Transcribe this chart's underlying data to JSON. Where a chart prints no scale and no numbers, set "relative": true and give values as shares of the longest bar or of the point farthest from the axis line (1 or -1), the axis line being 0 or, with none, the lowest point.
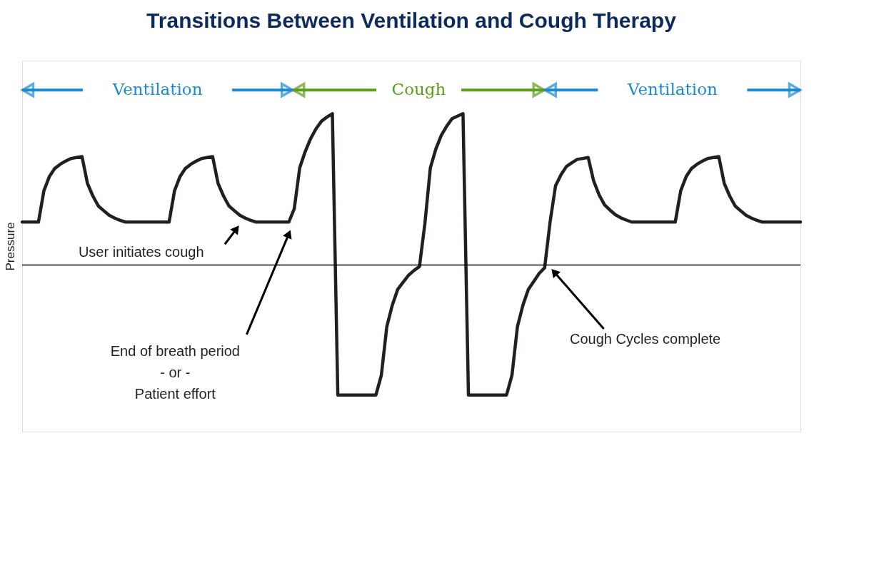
{
  "chart_data": {
    "type": "line",
    "title": "Transitions Between Ventilation and Cough Therapy",
    "ylabel": "Pressure",
    "relative": true,
    "tick_labels": false,
    "grid": false,
    "marker": "none",
    "line_style": "solid",
    "categories": [
      null,
      null,
      null,
      null,
      null,
      null,
      null,
      null,
      null,
      null,
      null,
      null,
      null,
      null,
      null,
      null,
      null,
      null,
      null,
      null,
      null,
      null,
      null,
      null,
      null,
      null,
      null,
      null,
      null,
      null,
      null,
      null,
      null,
      null,
      null,
      null,
      null,
      null,
      null,
      null,
      null,
      null,
      null,
      null,
      null,
      null,
      null,
      null,
      null,
      null,
      null,
      null,
      null,
      null,
      null,
      null,
      null,
      null,
      null,
      null,
      null,
      null,
      null,
      null,
      null,
      null,
      null,
      null,
      null,
      null,
      null,
      null,
      null,
      null,
      null,
      null,
      null,
      null,
      null,
      null,
      null,
      null,
      null,
      null,
      null,
      null,
      null,
      null,
      null,
      null,
      null,
      null,
      null,
      null,
      null,
      null,
      null,
      null,
      null,
      null,
      null,
      null,
      null,
      null,
      null,
      null,
      null,
      null,
      null,
      null,
      null,
      null,
      null,
      null,
      null,
      null,
      null,
      null,
      null,
      null,
      null,
      null,
      null,
      null,
      null,
      null,
      null,
      null,
      null,
      null,
      null,
      null,
      null,
      null,
      null,
      null,
      null,
      null,
      null,
      null,
      null,
      null,
      null,
      null
    ],
    "series": [
      {
        "color": "#231f20",
        "values": [
          0.284,
          0.284,
          0.284,
          0.284,
          0.491,
          0.584,
          0.638,
          0.666,
          0.687,
          0.704,
          0.71,
          0.716,
          0.539,
          0.456,
          0.39,
          0.359,
          0.329,
          0.31,
          0.295,
          0.284,
          0.284,
          0.284,
          0.284,
          0.284,
          0.284,
          0.284,
          0.284,
          0.284,
          0.491,
          0.584,
          0.638,
          0.666,
          0.687,
          0.704,
          0.71,
          0.716,
          0.539,
          0.456,
          0.39,
          0.359,
          0.329,
          0.31,
          0.295,
          0.284,
          0.284,
          0.284,
          0.284,
          0.284,
          0.284,
          0.284,
          0.372,
          0.642,
          0.749,
          0.835,
          0.9,
          0.95,
          0.977,
          1,
          -0.858,
          -0.858,
          -0.858,
          -0.858,
          -0.858,
          -0.858,
          -0.858,
          -0.858,
          -0.727,
          -0.407,
          -0.266,
          -0.161,
          -0.114,
          -0.067,
          -0.036,
          -0.01,
          0.275,
          0.642,
          0.765,
          0.856,
          0.917,
          0.967,
          0.984,
          1,
          -0.858,
          -0.858,
          -0.858,
          -0.858,
          -0.858,
          -0.858,
          -0.858,
          -0.858,
          -0.727,
          -0.407,
          -0.266,
          -0.161,
          -0.108,
          -0.055,
          -0.018,
          0.284,
          0.523,
          0.596,
          0.651,
          0.676,
          0.698,
          0.704,
          0.71,
          0.556,
          0.464,
          0.398,
          0.363,
          0.332,
          0.312,
          0.297,
          0.284,
          0.284,
          0.284,
          0.284,
          0.284,
          0.284,
          0.284,
          0.284,
          0.284,
          0.491,
          0.584,
          0.638,
          0.666,
          0.687,
          0.704,
          0.71,
          0.716,
          0.539,
          0.456,
          0.39,
          0.359,
          0.329,
          0.31,
          0.295,
          0.284,
          0.284,
          0.284,
          0.284,
          0.284,
          0.284,
          0.284,
          0.284
        ]
      }
    ],
    "annotations": [
      "Ventilation",
      "Cough",
      "Ventilation",
      "User initiates cough",
      "End of breath period\n- or -\nPatient effort",
      "Cough Cycles complete"
    ]
  }
}
